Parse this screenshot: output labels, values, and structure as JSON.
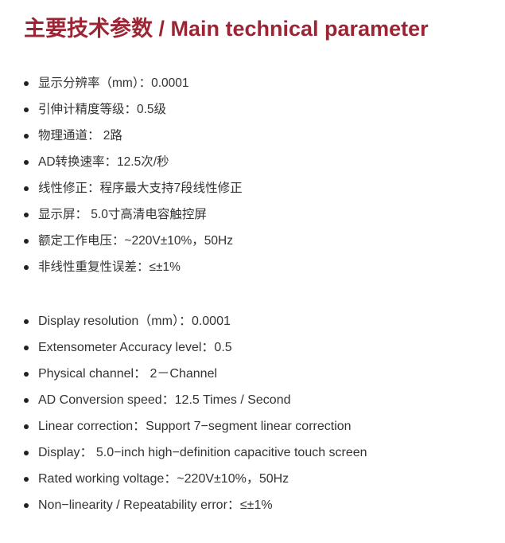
{
  "title": "主要技术参数 / Main technical parameter",
  "cn_items": [
    "显示分辨率（mm）：0.0001",
    "引伸计精度等级：0.5级",
    "物理通道： 2路",
    "AD转换速率：12.5次/秒",
    "线性修正：程序最大支持7段线性修正",
    "显示屏： 5.0寸高清电容触控屏",
    "额定工作电压：~220V±10%，50Hz",
    "非线性重复性误差：≤±1%"
  ],
  "en_items": [
    "Display resolution（mm）：0.0001",
    "Extensometer Accuracy level：0.5",
    "Physical channel： 2－Channel",
    "AD Conversion speed：12.5 Times / Second",
    "Linear correction：Support 7−segment linear correction",
    "Display： 5.0−inch high−definition capacitive touch screen",
    "Rated working voltage：~220V±10%，50Hz",
    "Non−linearity / Repeatability error：≤±1%"
  ]
}
